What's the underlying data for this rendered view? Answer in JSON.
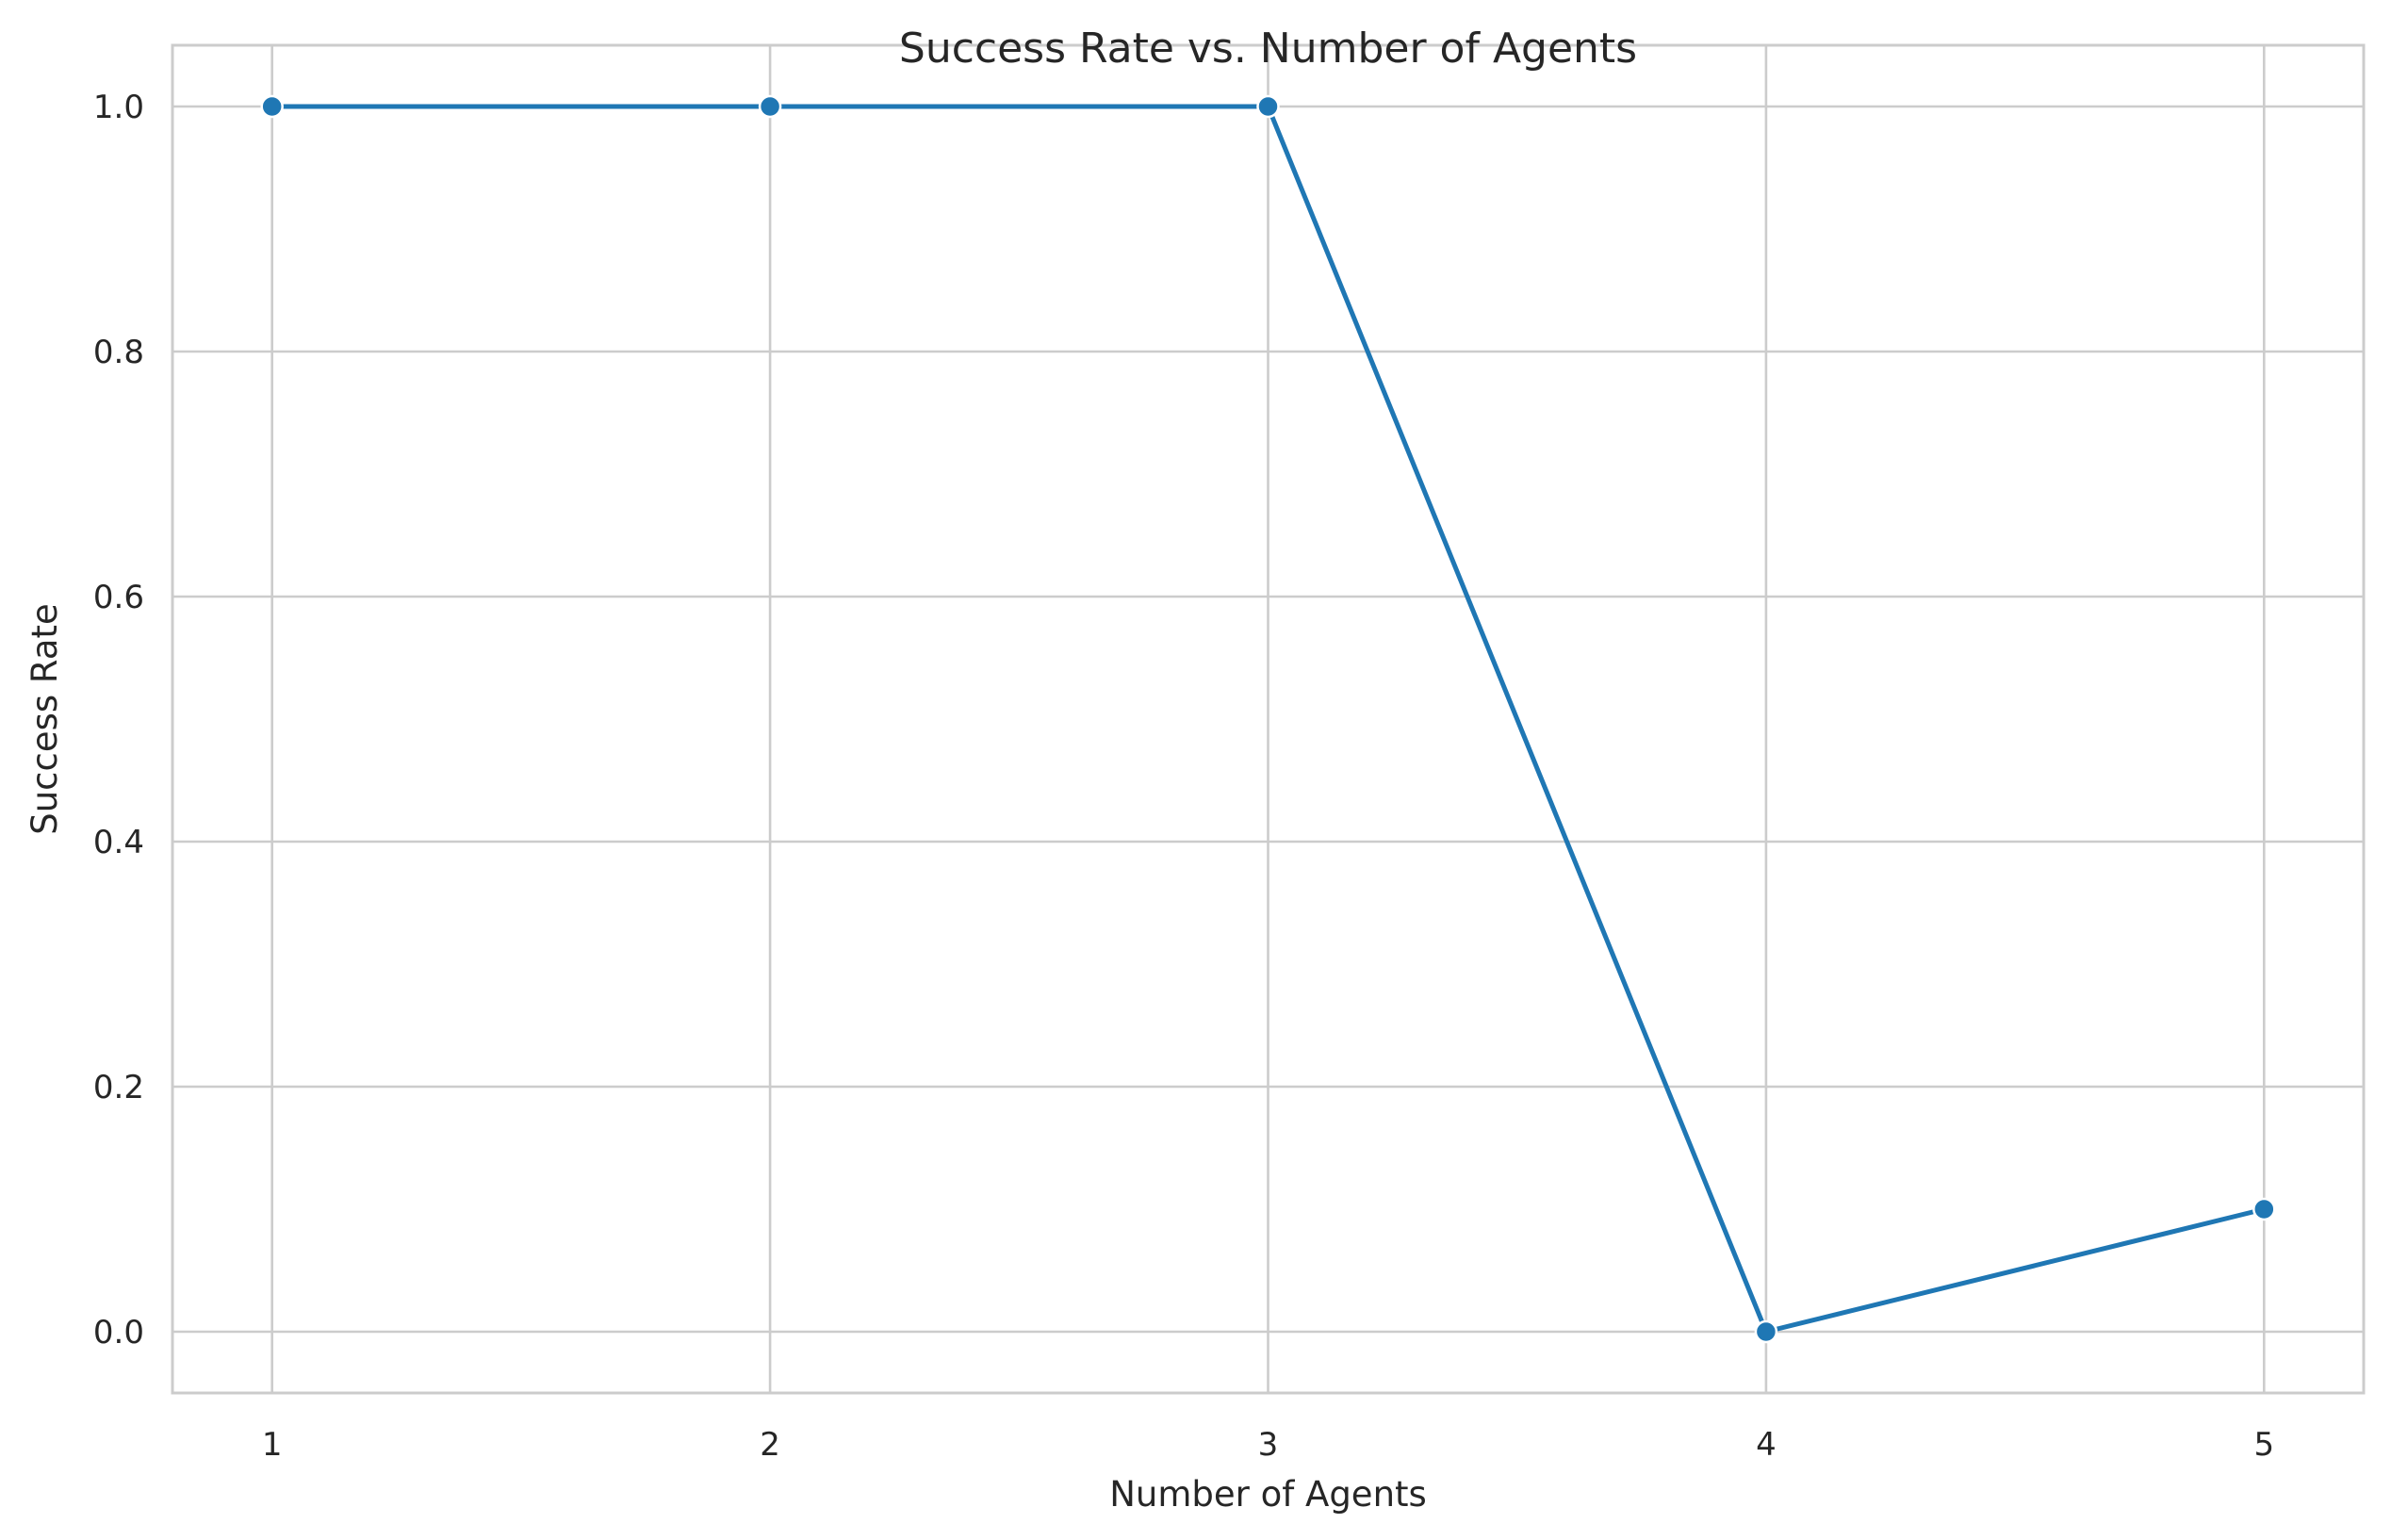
{
  "chart_data": {
    "type": "line",
    "title": "Success Rate vs. Number of Agents",
    "xlabel": "Number of Agents",
    "ylabel": "Success Rate",
    "x": [
      1,
      2,
      3,
      4,
      5
    ],
    "x_tick_labels": [
      "1",
      "2",
      "3",
      "4",
      "5"
    ],
    "y_ticks": [
      0.0,
      0.2,
      0.4,
      0.6,
      0.8,
      1.0
    ],
    "y_tick_labels": [
      "0.0",
      "0.2",
      "0.4",
      "0.6",
      "0.8",
      "1.0"
    ],
    "xlim": [
      0.8,
      5.2
    ],
    "ylim": [
      -0.05,
      1.05
    ],
    "grid": true,
    "series": [
      {
        "name": "Success Rate",
        "color": "#1f77b4",
        "marker": "circle",
        "values": [
          1.0,
          1.0,
          1.0,
          0.0,
          0.1
        ]
      }
    ]
  }
}
